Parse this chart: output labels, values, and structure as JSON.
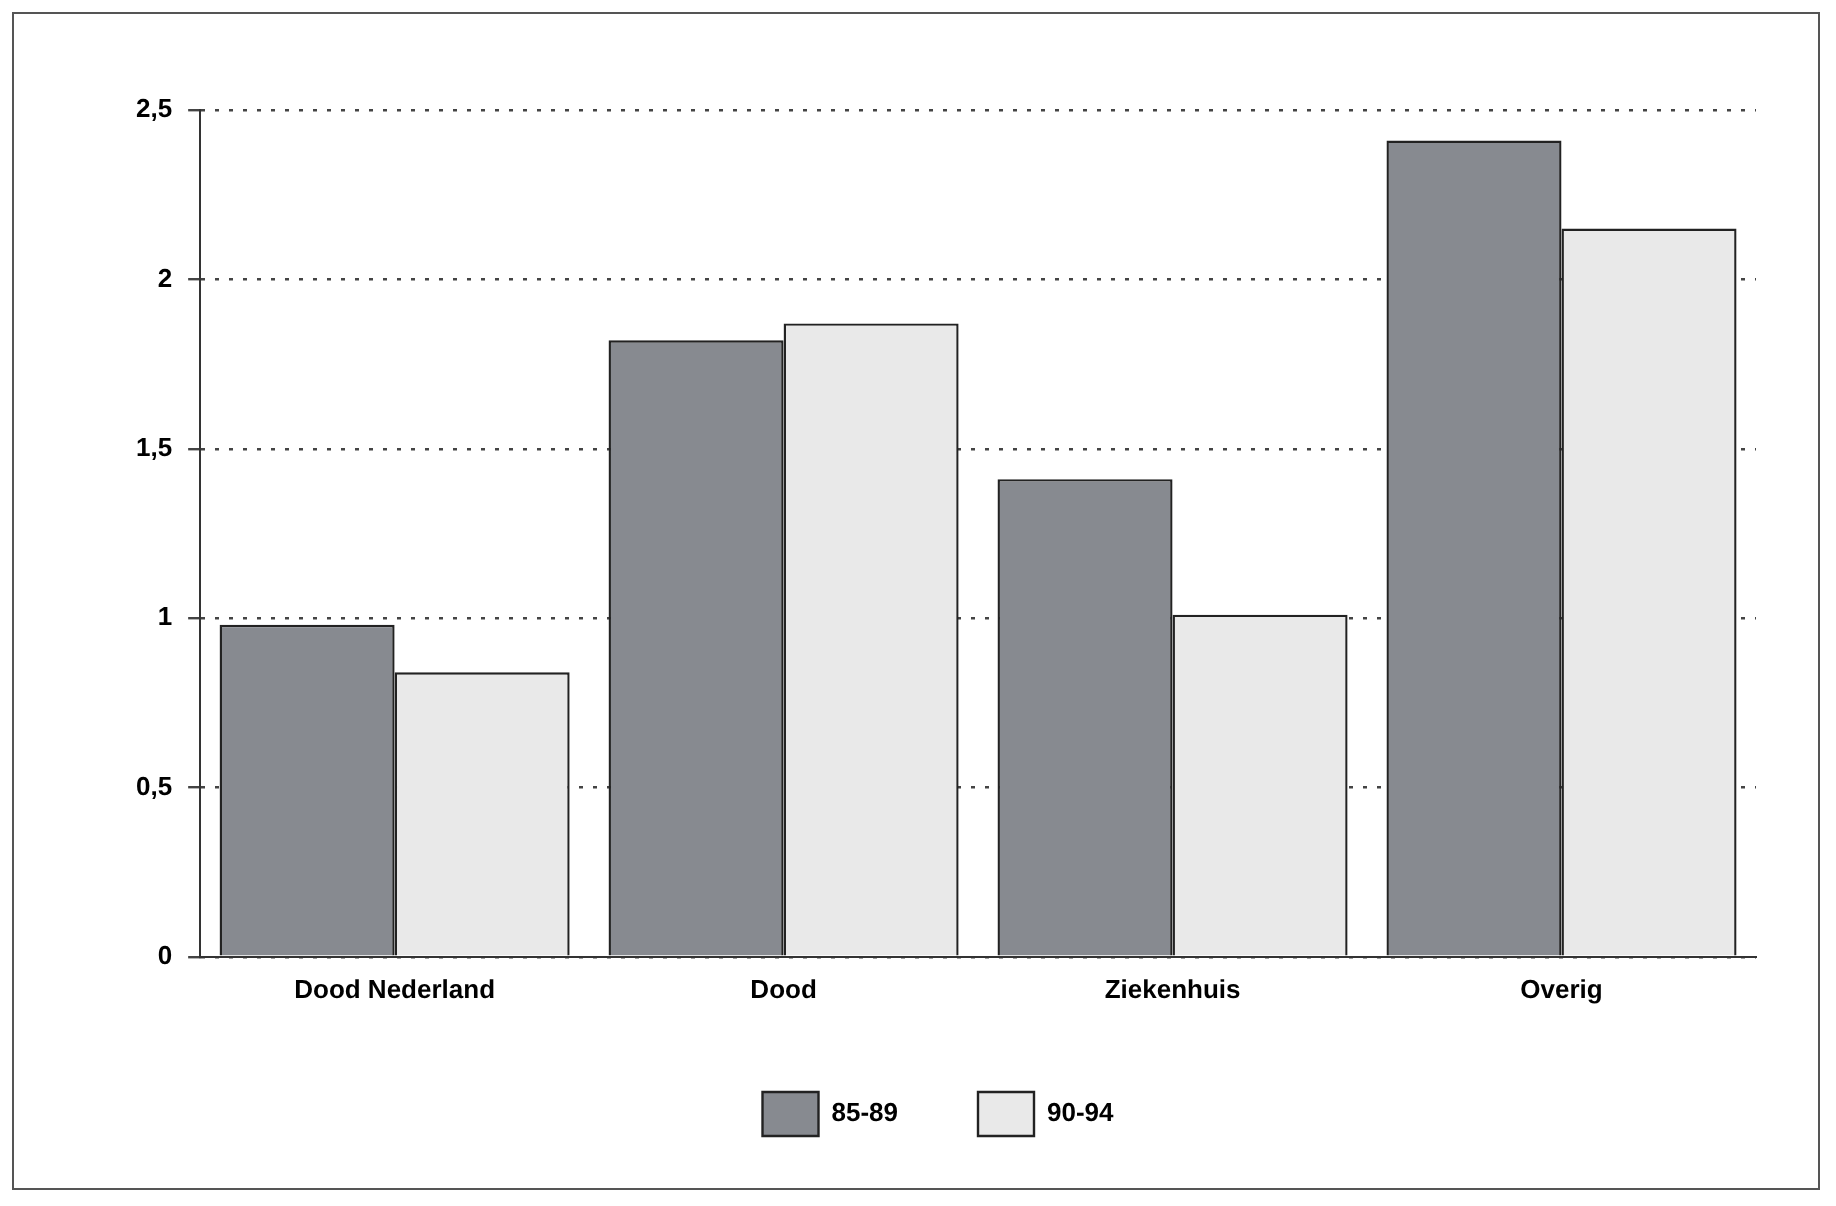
{
  "chart_data": {
    "type": "bar",
    "categories": [
      "Dood Nederland",
      "Dood",
      "Ziekenhuis",
      "Overig"
    ],
    "series": [
      {
        "name": "85-89",
        "color": "#878a90",
        "values": [
          0.98,
          1.82,
          1.41,
          2.41
        ]
      },
      {
        "name": "90-94",
        "color": "#e9e9e9",
        "values": [
          0.84,
          1.87,
          1.01,
          2.15
        ]
      }
    ],
    "ylim": [
      0,
      2.5
    ],
    "yticks": [
      0,
      {
        "value": 0.5,
        "label": "0,5"
      },
      1,
      {
        "value": 1.5,
        "label": "1,5"
      },
      2,
      {
        "value": 2.5,
        "label": "2,5"
      }
    ],
    "grid": "y",
    "legend": "bottom"
  }
}
